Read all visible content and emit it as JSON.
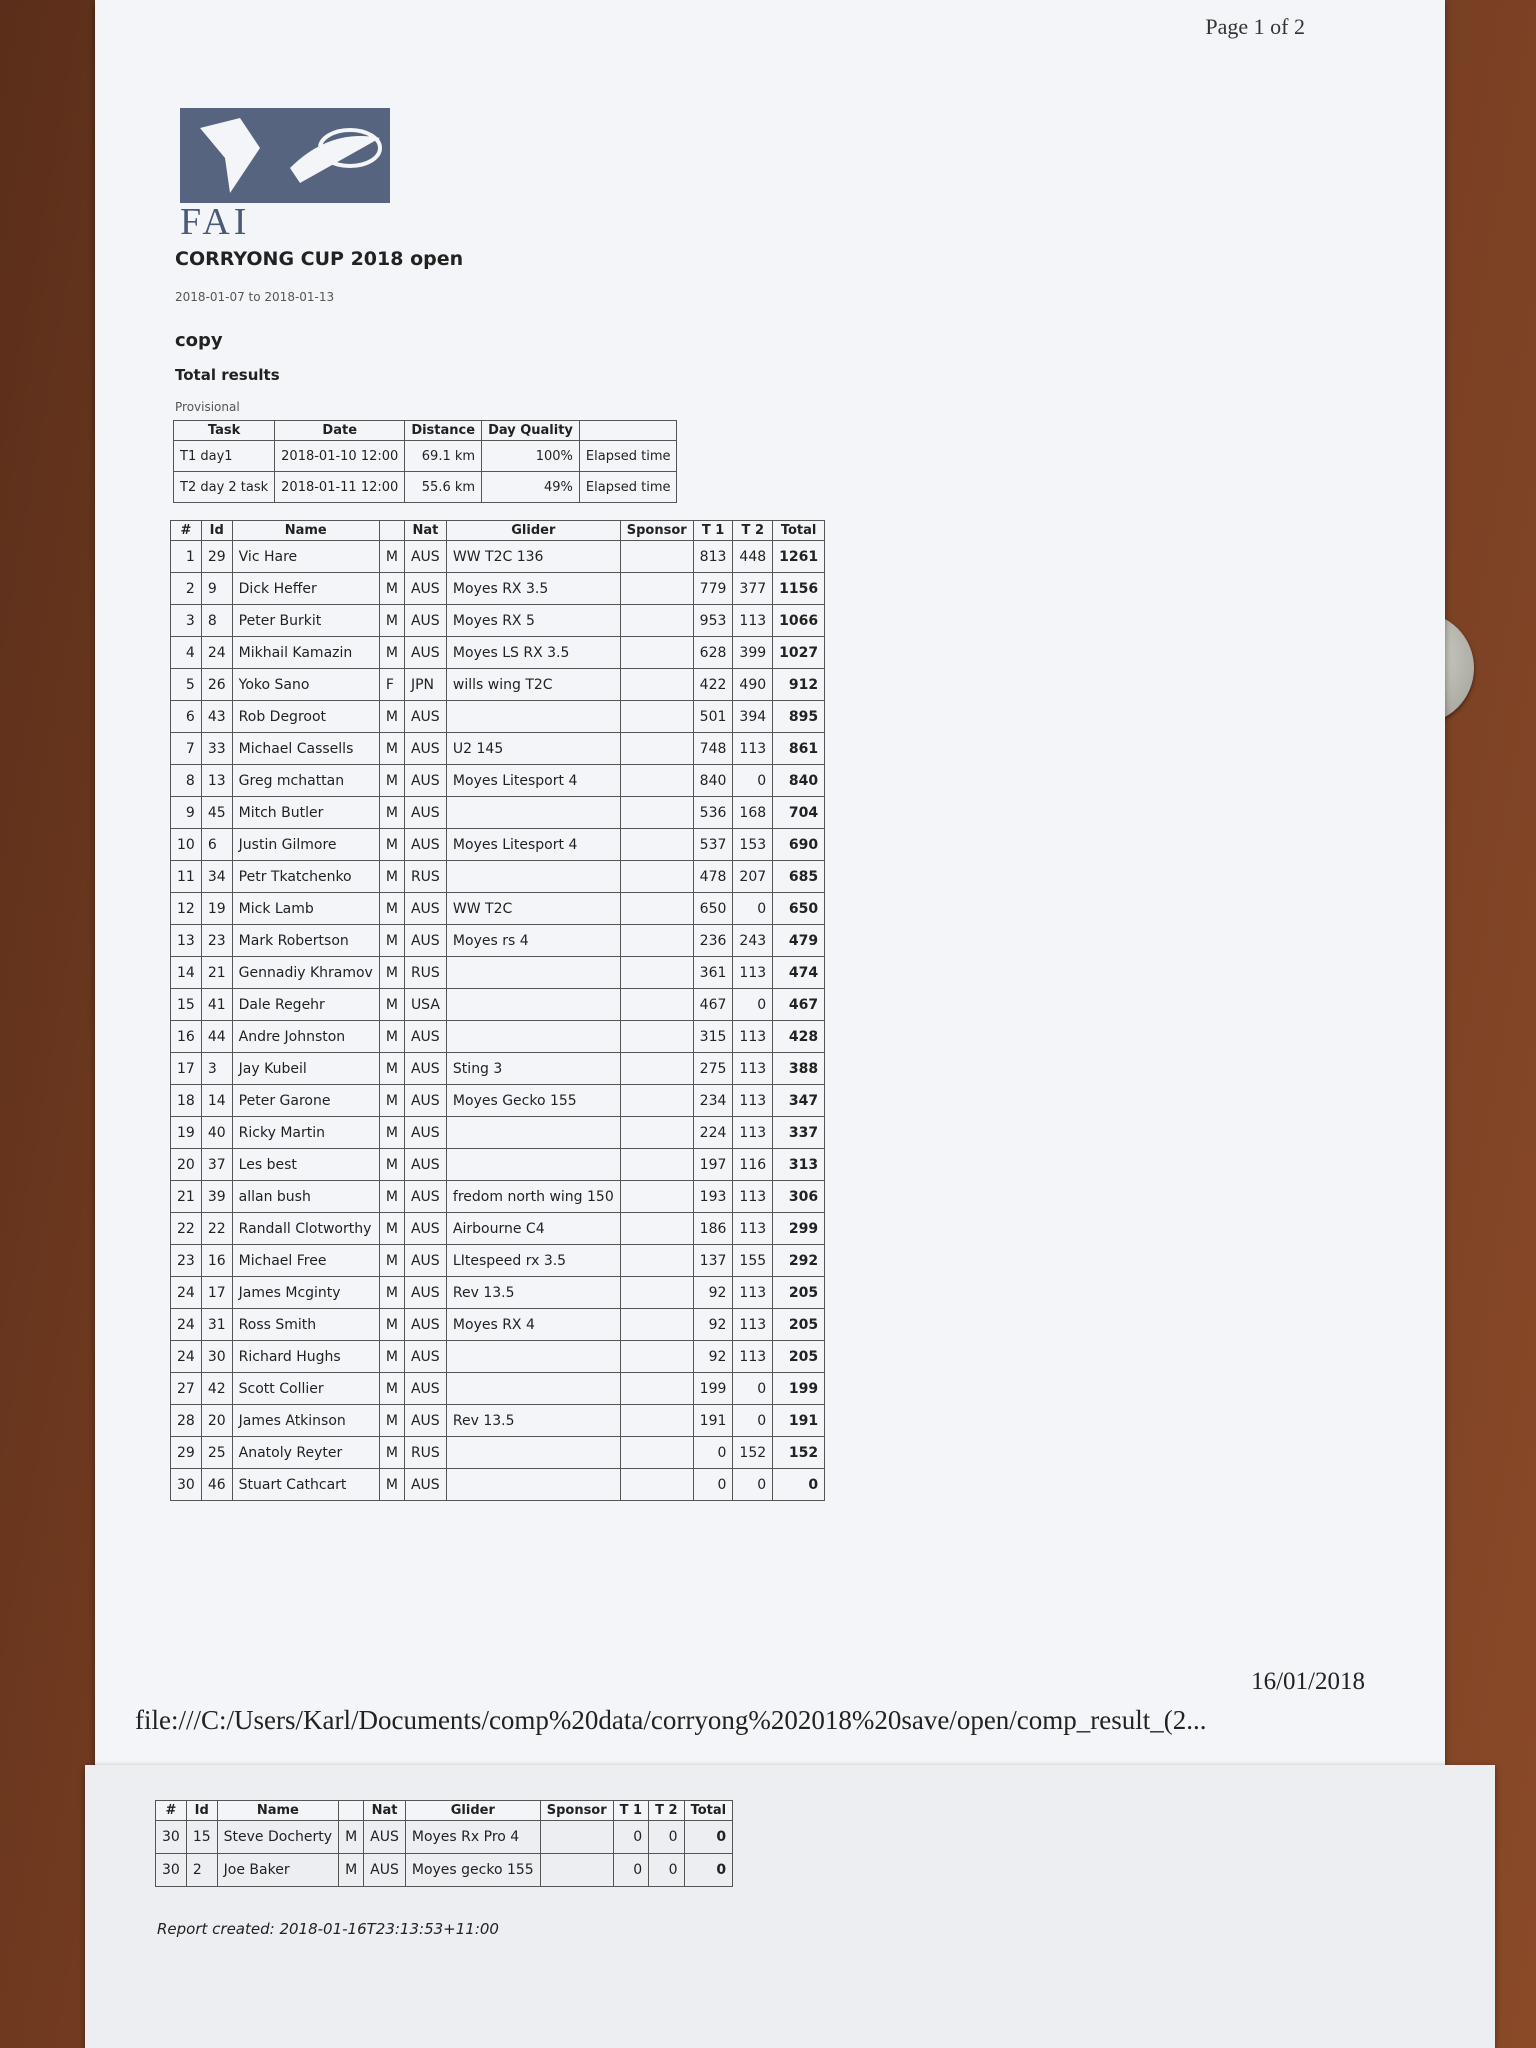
{
  "header": {
    "page": "Page 1 of 2",
    "logo": "FAI",
    "title": "CORRYONG CUP 2018 open",
    "dates": "2018-01-07 to 2018-01-13",
    "copy": "copy",
    "subtitle": "Total results",
    "status": "Provisional"
  },
  "tasks": {
    "headers": [
      "Task",
      "Date",
      "Distance",
      "Day Quality"
    ],
    "rows": [
      [
        "T1 day1",
        "2018-01-10 12:00",
        "69.1 km",
        "100%",
        "Elapsed time"
      ],
      [
        "T2 day 2 task",
        "2018-01-11 12:00",
        "55.6 km",
        "49%",
        "Elapsed time"
      ]
    ]
  },
  "results": {
    "headers": [
      "#",
      "Id",
      "Name",
      "Nat",
      "Glider",
      "Sponsor",
      "T 1",
      "T 2",
      "Total"
    ],
    "rows": [
      {
        "rank": 1,
        "id": 29,
        "name": "Vic Hare",
        "sex": "M",
        "nat": "AUS",
        "glider": "WW T2C 136",
        "t1": 813,
        "t2": 448,
        "total": 1261
      },
      {
        "rank": 2,
        "id": 9,
        "name": "Dick Heffer",
        "sex": "M",
        "nat": "AUS",
        "glider": "Moyes RX 3.5",
        "t1": 779,
        "t2": 377,
        "total": 1156
      },
      {
        "rank": 3,
        "id": 8,
        "name": "Peter Burkit",
        "sex": "M",
        "nat": "AUS",
        "glider": "Moyes RX 5",
        "t1": 953,
        "t2": 113,
        "total": 1066
      },
      {
        "rank": 4,
        "id": 24,
        "name": "Mikhail Kamazin",
        "sex": "M",
        "nat": "AUS",
        "glider": "Moyes LS RX 3.5",
        "t1": 628,
        "t2": 399,
        "total": 1027
      },
      {
        "rank": 5,
        "id": 26,
        "name": "Yoko Sano",
        "sex": "F",
        "nat": "JPN",
        "glider": "wills wing T2C",
        "t1": 422,
        "t2": 490,
        "total": 912
      },
      {
        "rank": 6,
        "id": 43,
        "name": "Rob Degroot",
        "sex": "M",
        "nat": "AUS",
        "t1": 501,
        "t2": 394,
        "total": 895
      },
      {
        "rank": 7,
        "id": 33,
        "name": "Michael Cassells",
        "sex": "M",
        "nat": "AUS",
        "glider": "U2 145",
        "t1": 748,
        "t2": 113,
        "total": 861
      },
      {
        "rank": 8,
        "id": 13,
        "name": "Greg mchattan",
        "sex": "M",
        "nat": "AUS",
        "glider": "Moyes Litesport 4",
        "t1": 840,
        "t2": 0,
        "total": 840
      },
      {
        "rank": 9,
        "id": 45,
        "name": "Mitch Butler",
        "sex": "M",
        "nat": "AUS",
        "t1": 536,
        "t2": 168,
        "total": 704
      },
      {
        "rank": 10,
        "id": 6,
        "name": "Justin Gilmore",
        "sex": "M",
        "nat": "AUS",
        "glider": "Moyes Litesport 4",
        "t1": 537,
        "t2": 153,
        "total": 690
      },
      {
        "rank": 11,
        "id": 34,
        "name": "Petr Tkatchenko",
        "sex": "M",
        "nat": "RUS",
        "t1": 478,
        "t2": 207,
        "total": 685
      },
      {
        "rank": 12,
        "id": 19,
        "name": "Mick Lamb",
        "sex": "M",
        "nat": "AUS",
        "glider": "WW T2C",
        "t1": 650,
        "t2": 0,
        "total": 650
      },
      {
        "rank": 13,
        "id": 23,
        "name": "Mark Robertson",
        "sex": "M",
        "nat": "AUS",
        "glider": "Moyes rs 4",
        "t1": 236,
        "t2": 243,
        "total": 479
      },
      {
        "rank": 14,
        "id": 21,
        "name": "Gennadiy Khramov",
        "sex": "M",
        "nat": "RUS",
        "t1": 361,
        "t2": 113,
        "total": 474
      },
      {
        "rank": 15,
        "id": 41,
        "name": "Dale Regehr",
        "sex": "M",
        "nat": "USA",
        "t1": 467,
        "t2": 0,
        "total": 467
      },
      {
        "rank": 16,
        "id": 44,
        "name": "Andre Johnston",
        "sex": "M",
        "nat": "AUS",
        "t1": 315,
        "t2": 113,
        "total": 428
      },
      {
        "rank": 17,
        "id": 3,
        "name": "Jay Kubeil",
        "sex": "M",
        "nat": "AUS",
        "glider": "Sting 3",
        "t1": 275,
        "t2": 113,
        "total": 388
      },
      {
        "rank": 18,
        "id": 14,
        "name": "Peter Garone",
        "sex": "M",
        "nat": "AUS",
        "glider": "Moyes Gecko 155",
        "t1": 234,
        "t2": 113,
        "total": 347
      },
      {
        "rank": 19,
        "id": 40,
        "name": "Ricky Martin",
        "sex": "M",
        "nat": "AUS",
        "t1": 224,
        "t2": 113,
        "total": 337
      },
      {
        "rank": 20,
        "id": 37,
        "name": "Les best",
        "sex": "M",
        "nat": "AUS",
        "t1": 197,
        "t2": 116,
        "total": 313
      },
      {
        "rank": 21,
        "id": 39,
        "name": "allan bush",
        "sex": "M",
        "nat": "AUS",
        "glider": "fredom north wing 150",
        "t1": 193,
        "t2": 113,
        "total": 306
      },
      {
        "rank": 22,
        "id": 22,
        "name": "Randall Clotworthy",
        "sex": "M",
        "nat": "AUS",
        "glider": "Airbourne C4",
        "t1": 186,
        "t2": 113,
        "total": 299
      },
      {
        "rank": 23,
        "id": 16,
        "name": "Michael Free",
        "sex": "M",
        "nat": "AUS",
        "glider": "LItespeed rx 3.5",
        "t1": 137,
        "t2": 155,
        "total": 292
      },
      {
        "rank": 24,
        "id": 17,
        "name": "James Mcginty",
        "sex": "M",
        "nat": "AUS",
        "glider": "Rev 13.5",
        "t1": 92,
        "t2": 113,
        "total": 205
      },
      {
        "rank": 24,
        "id": 31,
        "name": "Ross Smith",
        "sex": "M",
        "nat": "AUS",
        "glider": "Moyes RX 4",
        "t1": 92,
        "t2": 113,
        "total": 205
      },
      {
        "rank": 24,
        "id": 30,
        "name": "Richard Hughs",
        "sex": "M",
        "nat": "AUS",
        "t1": 92,
        "t2": 113,
        "total": 205
      },
      {
        "rank": 27,
        "id": 42,
        "name": "Scott Collier",
        "sex": "M",
        "nat": "AUS",
        "t1": 199,
        "t2": 0,
        "total": 199
      },
      {
        "rank": 28,
        "id": 20,
        "name": "James Atkinson",
        "sex": "M",
        "nat": "AUS",
        "glider": "Rev 13.5",
        "t1": 191,
        "t2": 0,
        "total": 191
      },
      {
        "rank": 29,
        "id": 25,
        "name": "Anatoly Reyter",
        "sex": "M",
        "nat": "RUS",
        "t1": 0,
        "t2": 152,
        "total": 152
      },
      {
        "rank": 30,
        "id": 46,
        "name": "Stuart Cathcart",
        "sex": "M",
        "nat": "AUS",
        "t1": 0,
        "t2": 0,
        "total": 0
      }
    ]
  },
  "footer": {
    "path": "file:///C:/Users/Karl/Documents/comp%20data/corryong%202018%20save/open/comp_result_(2...",
    "date": "16/01/2018"
  },
  "page2": {
    "rows": [
      {
        "rank": 30,
        "id": 15,
        "name": "Steve Docherty",
        "sex": "M",
        "nat": "AUS",
        "glider": "Moyes Rx Pro 4",
        "t1": 0,
        "t2": 0,
        "total": 0
      },
      {
        "rank": 30,
        "id": 2,
        "name": "Joe Baker",
        "sex": "M",
        "nat": "AUS",
        "glider": "Moyes gecko 155",
        "t1": 0,
        "t2": 0,
        "total": 0
      }
    ],
    "created": "Report created: 2018-01-16T23:13:53+11:00"
  }
}
